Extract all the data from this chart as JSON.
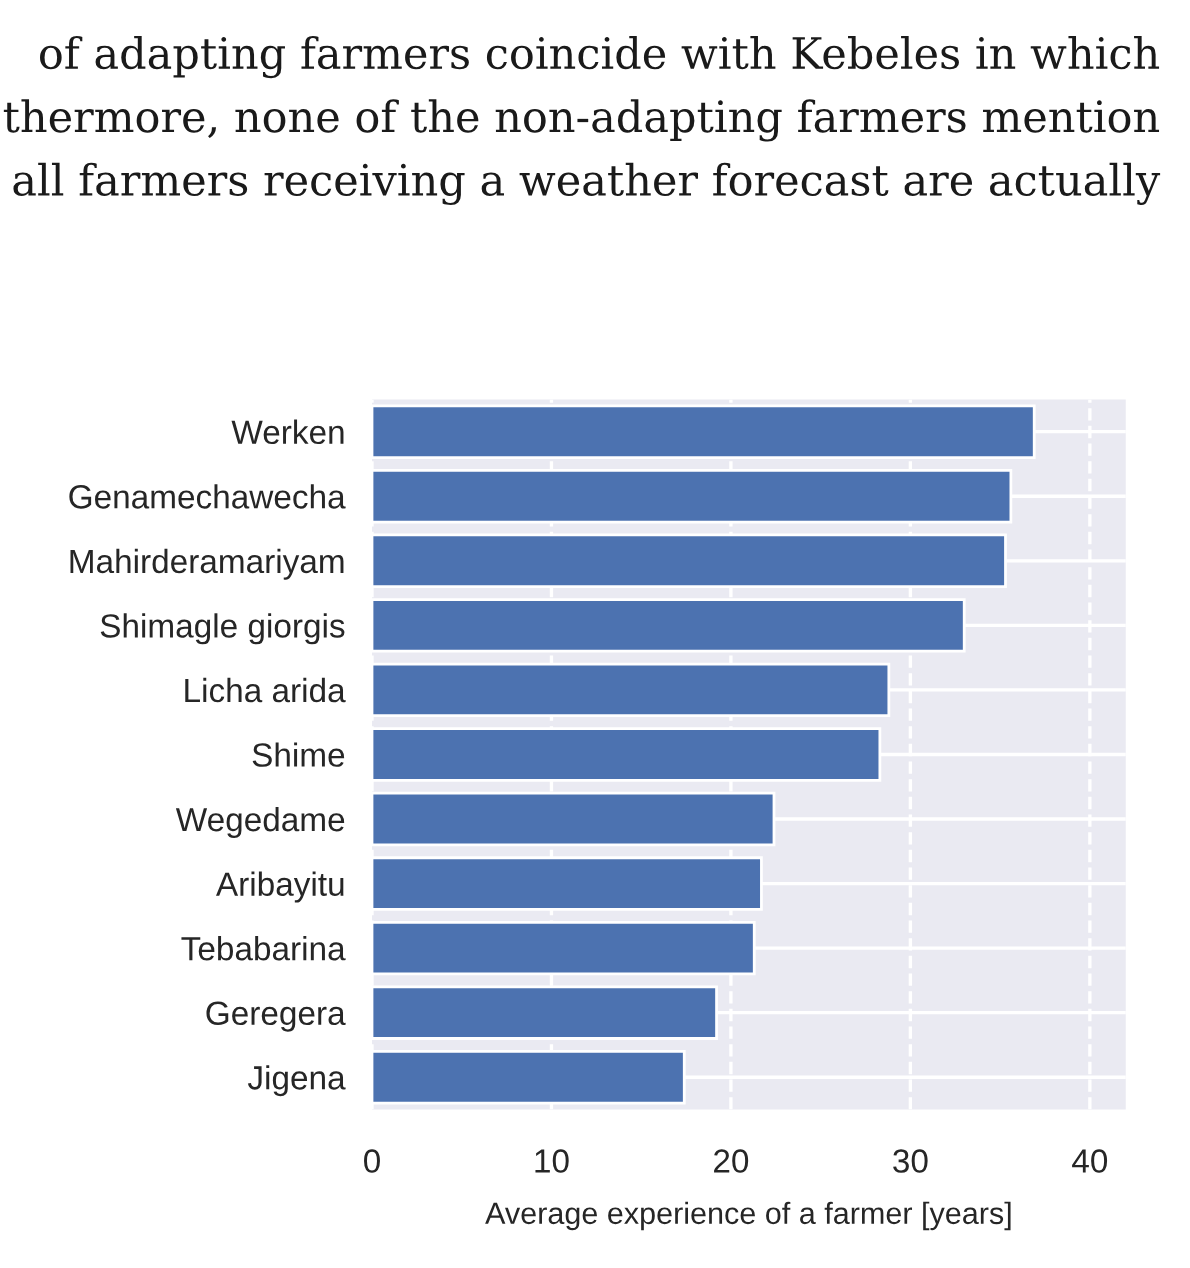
{
  "chart_data": {
    "type": "bar",
    "orientation": "horizontal",
    "categories": [
      "Werken",
      "Genamechawecha",
      "Mahirderamariyam",
      "Shimagle giorgis",
      "Licha arida",
      "Shime",
      "Wegedame",
      "Aribayitu",
      "Tebabarina",
      "Geregera",
      "Jigena"
    ],
    "values": [
      36.9,
      35.6,
      35.3,
      33.0,
      28.8,
      28.3,
      22.4,
      21.7,
      21.3,
      19.2,
      17.4
    ],
    "color": "#4c72b0",
    "xlabel": "Average experience of a farmer [years]",
    "xlim": [
      0,
      42
    ],
    "xticks": [
      0,
      10,
      20,
      30,
      40
    ],
    "grid": true,
    "annotations": [
      "of adapting farmers coincide with Kebeles in which",
      "thermore, none of the non-adapting farmers mention",
      "all farmers receiving a weather forecast are actually"
    ]
  }
}
